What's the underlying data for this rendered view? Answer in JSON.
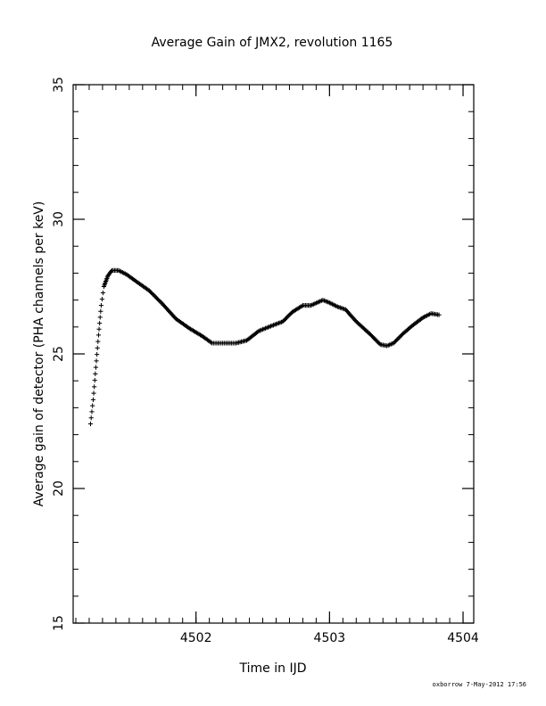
{
  "chart_data": {
    "type": "scatter",
    "title": "Average Gain of JMX2, revolution 1165",
    "xlabel": "Time in IJD",
    "ylabel": "Average gain of detector (PHA channels per keV)",
    "xlim": [
      4501.08,
      4504.08
    ],
    "ylim": [
      15,
      35
    ],
    "x_ticks": [
      4502,
      4503,
      4504
    ],
    "x_tick_labels": [
      "4502",
      "4503",
      "4504"
    ],
    "y_ticks": [
      15,
      20,
      25,
      30,
      35
    ],
    "y_tick_labels": [
      "15",
      "20",
      "25",
      "30",
      "35"
    ],
    "grid": false,
    "marker": "+",
    "color": "#000000",
    "curve_anchors": [
      [
        4501.21,
        22.4
      ],
      [
        4501.23,
        23.3
      ],
      [
        4501.25,
        24.5
      ],
      [
        4501.27,
        25.7
      ],
      [
        4501.29,
        26.8
      ],
      [
        4501.31,
        27.5
      ],
      [
        4501.34,
        27.9
      ],
      [
        4501.37,
        28.1
      ],
      [
        4501.42,
        28.1
      ],
      [
        4501.48,
        27.95
      ],
      [
        4501.55,
        27.7
      ],
      [
        4501.65,
        27.35
      ],
      [
        4501.75,
        26.85
      ],
      [
        4501.85,
        26.3
      ],
      [
        4501.95,
        25.95
      ],
      [
        4502.05,
        25.65
      ],
      [
        4502.12,
        25.4
      ],
      [
        4502.2,
        25.4
      ],
      [
        4502.3,
        25.4
      ],
      [
        4502.38,
        25.5
      ],
      [
        4502.47,
        25.85
      ],
      [
        4502.57,
        26.05
      ],
      [
        4502.65,
        26.2
      ],
      [
        4502.72,
        26.55
      ],
      [
        4502.8,
        26.8
      ],
      [
        4502.86,
        26.8
      ],
      [
        4502.95,
        27.0
      ],
      [
        4503.0,
        26.9
      ],
      [
        4503.06,
        26.75
      ],
      [
        4503.12,
        26.65
      ],
      [
        4503.2,
        26.2
      ],
      [
        4503.3,
        25.75
      ],
      [
        4503.38,
        25.35
      ],
      [
        4503.43,
        25.3
      ],
      [
        4503.48,
        25.4
      ],
      [
        4503.55,
        25.75
      ],
      [
        4503.62,
        26.05
      ],
      [
        4503.7,
        26.35
      ],
      [
        4503.76,
        26.5
      ],
      [
        4503.82,
        26.45
      ]
    ]
  },
  "footer": {
    "credit": "oxborrow  7-May-2012 17:56"
  }
}
